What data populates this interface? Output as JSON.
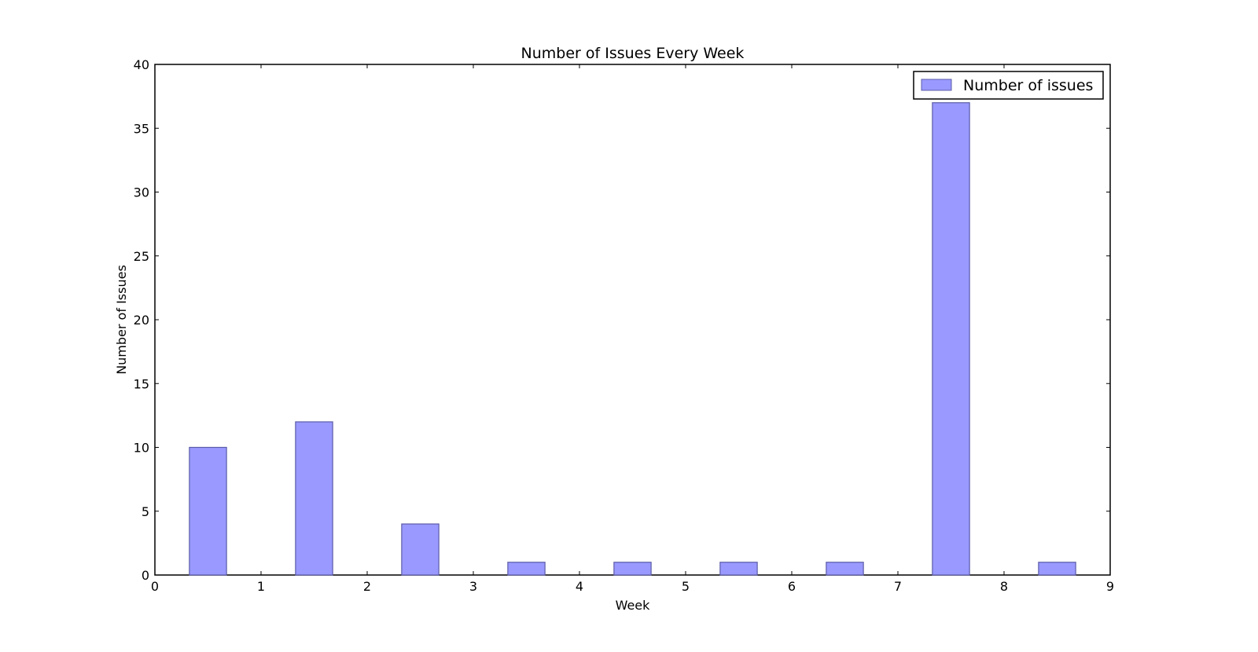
{
  "chart_data": {
    "type": "bar",
    "title": "Number of Issues Every Week",
    "xlabel": "Week",
    "ylabel": "Number of Issues",
    "x": [
      0.5,
      1.5,
      2.5,
      3.5,
      4.5,
      5.5,
      6.5,
      7.5,
      8.5
    ],
    "bar_width": 0.35,
    "series": [
      {
        "name": "Number of issues",
        "values": [
          10,
          12,
          4,
          1,
          1,
          1,
          1,
          37,
          1
        ],
        "color": "#9999ff",
        "edge_color": "#5c5ca8"
      }
    ],
    "xlim": [
      0,
      9
    ],
    "ylim": [
      0,
      40
    ],
    "xticks": [
      0,
      1,
      2,
      3,
      4,
      5,
      6,
      7,
      8,
      9
    ],
    "yticks": [
      0,
      5,
      10,
      15,
      20,
      25,
      30,
      35,
      40
    ],
    "grid": false,
    "legend_position": "top-right"
  }
}
